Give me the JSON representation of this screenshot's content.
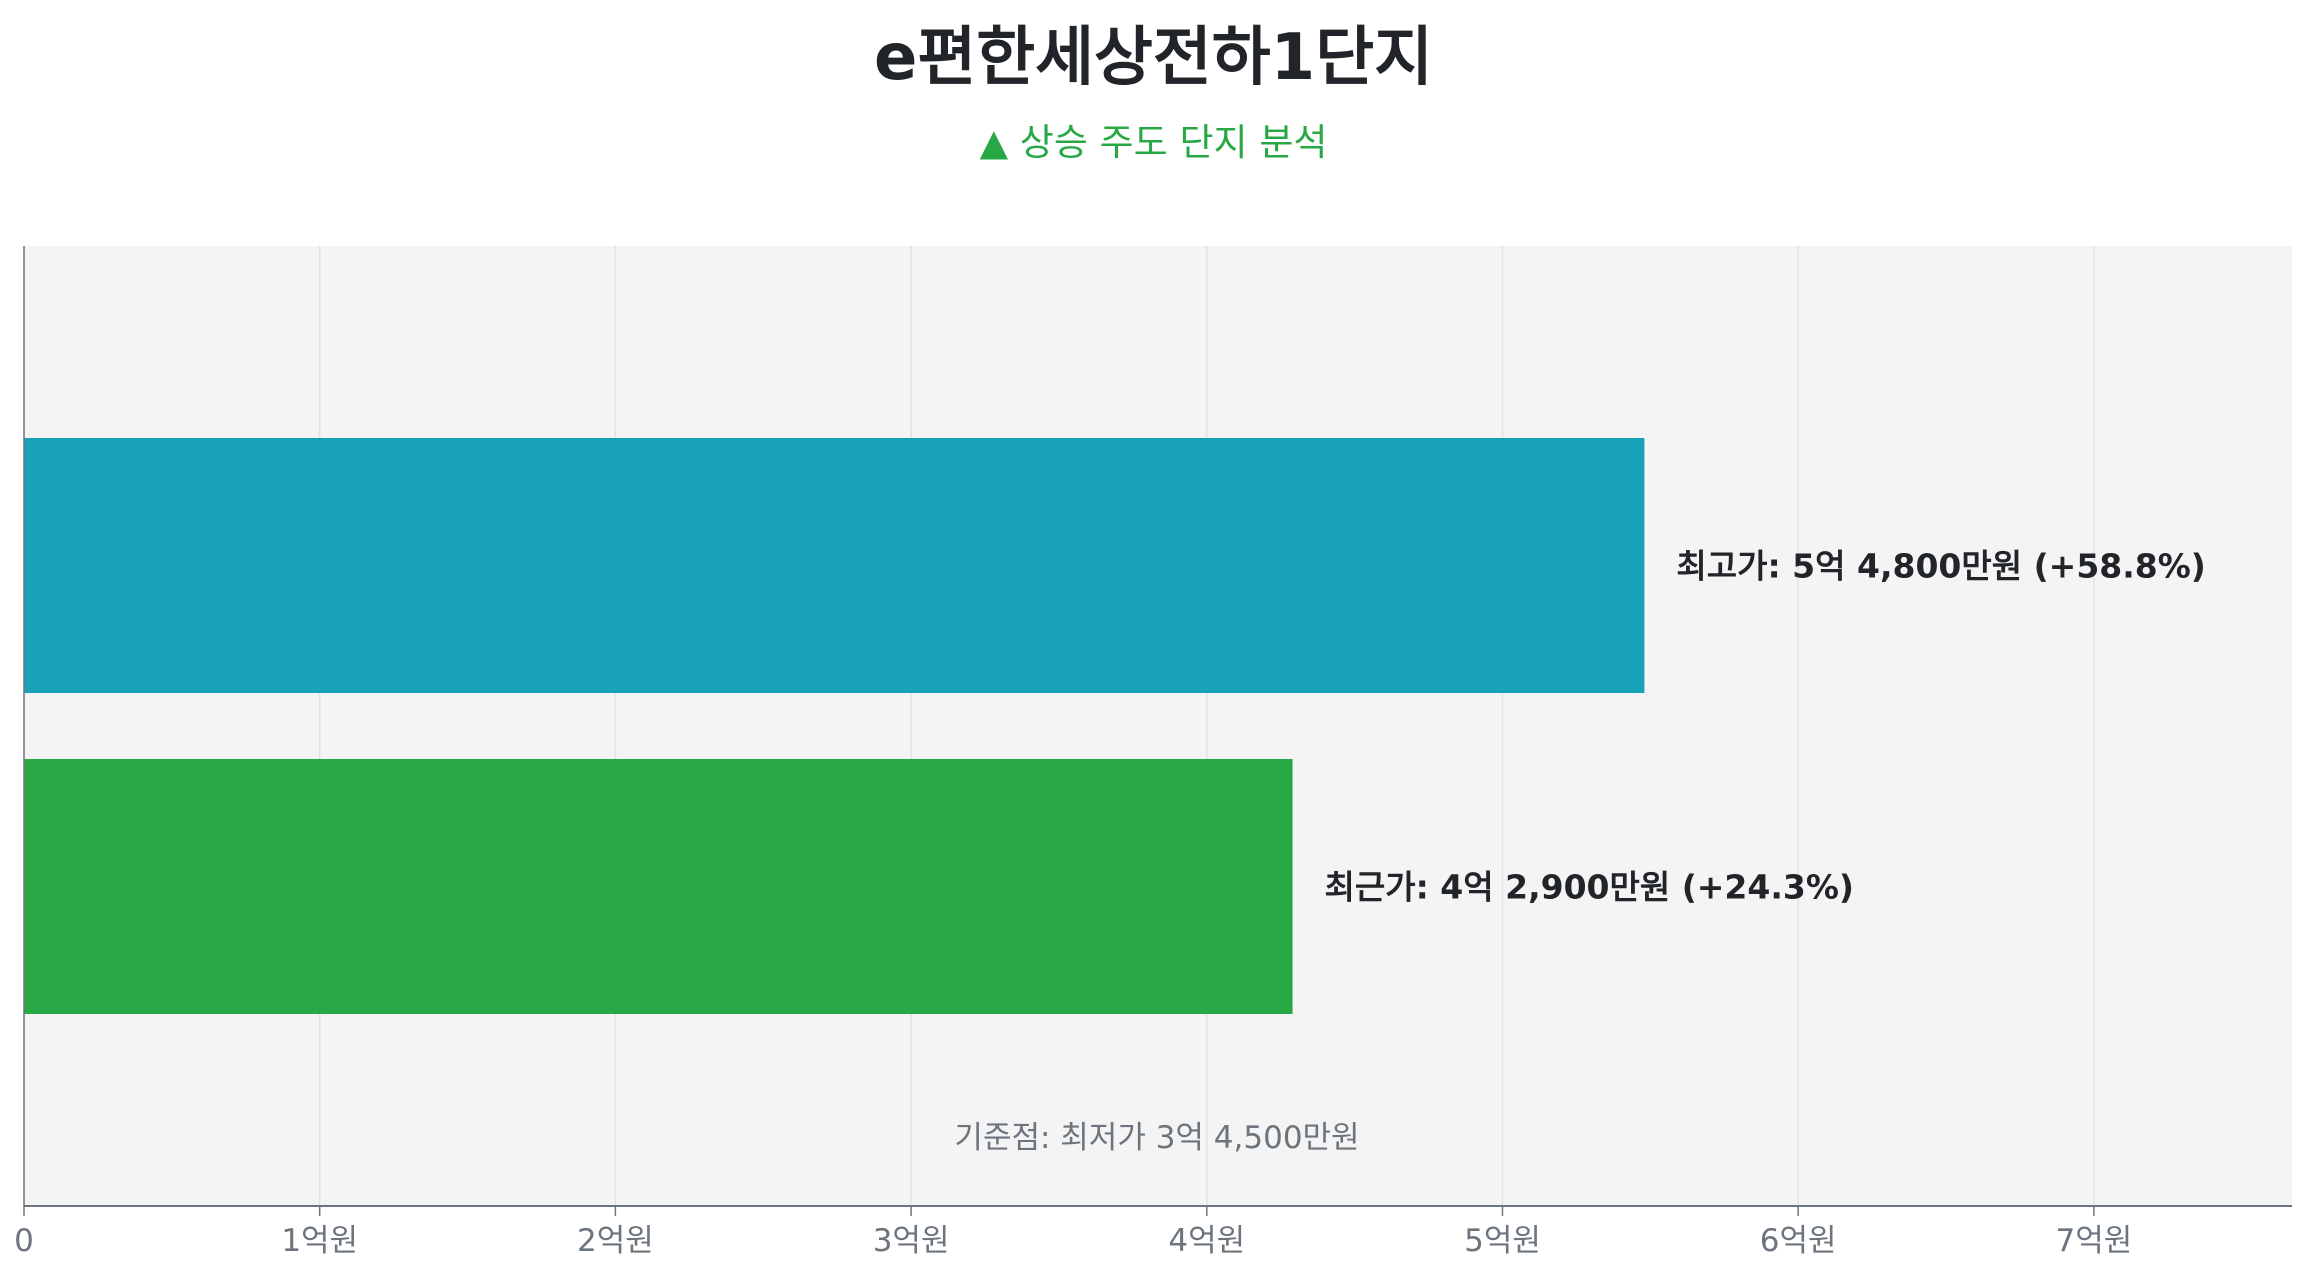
{
  "title": "e편한세상전하1단지",
  "subtitle": "▲ 상승 주도 단지 분석",
  "chart_data": {
    "type": "bar",
    "orientation": "horizontal",
    "unit": "억원",
    "xlim": [
      0,
      7.67
    ],
    "grid": true,
    "tick_values": [
      0,
      1,
      2,
      3,
      4,
      5,
      6,
      7
    ],
    "tick_labels": [
      "0",
      "1억원",
      "2억원",
      "3억원",
      "4억원",
      "5억원",
      "6억원",
      "7억원"
    ],
    "bars": [
      {
        "value": 5.48,
        "label": "최고가: 5억 4,800만원 (+58.8%)",
        "color": "#17a2b8"
      },
      {
        "value": 4.29,
        "label": "최근가: 4억 2,900만원 (+24.3%)",
        "color": "#28a745"
      }
    ],
    "annotation": "기준점: 최저가 3억 4,500만원",
    "background": "#f4f4f4"
  }
}
